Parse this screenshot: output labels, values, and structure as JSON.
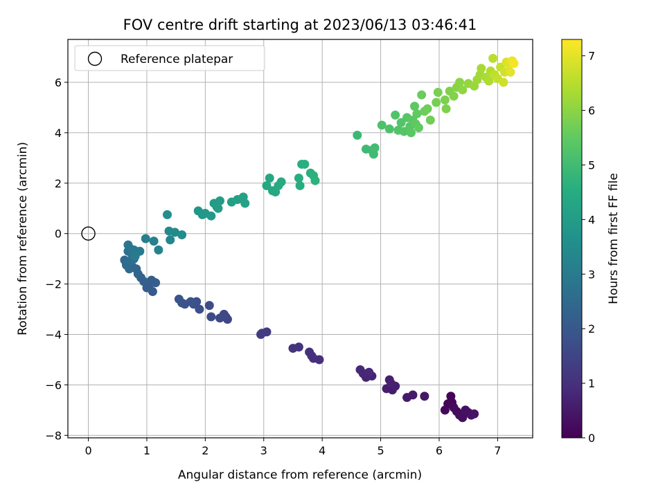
{
  "chart_data": {
    "type": "scatter",
    "title": "FOV centre drift starting at 2023/06/13 03:46:41",
    "xlabel": "Angular distance from reference (arcmin)",
    "ylabel": "Rotation from reference (arcmin)",
    "colorbar_label": "Hours from first FF file",
    "colormap": "viridis",
    "xlim": [
      -0.35,
      7.6
    ],
    "ylim": [
      -8.1,
      7.7
    ],
    "clim": [
      0,
      7.3
    ],
    "xticks": [
      "0",
      "1",
      "2",
      "3",
      "4",
      "5",
      "6",
      "7"
    ],
    "yticks": [
      "−8",
      "−6",
      "−4",
      "−2",
      "0",
      "2",
      "4",
      "6"
    ],
    "colorbar_ticks": [
      "0",
      "1",
      "2",
      "3",
      "4",
      "5",
      "6",
      "7"
    ],
    "grid": true,
    "legend": {
      "label": "Reference platepar",
      "placement": "top-left"
    },
    "reference_point": {
      "x": 0,
      "y": 0
    },
    "points": [
      {
        "x": 6.2,
        "y": -6.45,
        "c": 0.05
      },
      {
        "x": 6.15,
        "y": -6.75,
        "c": 0.1
      },
      {
        "x": 6.22,
        "y": -6.7,
        "c": 0.12
      },
      {
        "x": 6.1,
        "y": -7.0,
        "c": 0.15
      },
      {
        "x": 6.3,
        "y": -7.05,
        "c": 0.2
      },
      {
        "x": 6.35,
        "y": -7.2,
        "c": 0.25
      },
      {
        "x": 6.4,
        "y": -7.3,
        "c": 0.28
      },
      {
        "x": 6.45,
        "y": -7.0,
        "c": 0.32
      },
      {
        "x": 6.5,
        "y": -7.1,
        "c": 0.35
      },
      {
        "x": 6.55,
        "y": -7.2,
        "c": 0.38
      },
      {
        "x": 6.6,
        "y": -7.15,
        "c": 0.4
      },
      {
        "x": 6.25,
        "y": -6.9,
        "c": 0.18
      },
      {
        "x": 5.75,
        "y": -6.45,
        "c": 0.45
      },
      {
        "x": 5.55,
        "y": -6.4,
        "c": 0.5
      },
      {
        "x": 5.45,
        "y": -6.5,
        "c": 0.52
      },
      {
        "x": 5.2,
        "y": -6.2,
        "c": 0.55
      },
      {
        "x": 5.1,
        "y": -6.15,
        "c": 0.6
      },
      {
        "x": 5.25,
        "y": -6.05,
        "c": 0.62
      },
      {
        "x": 5.15,
        "y": -5.8,
        "c": 0.65
      },
      {
        "x": 5.18,
        "y": -5.95,
        "c": 0.68
      },
      {
        "x": 4.85,
        "y": -5.65,
        "c": 0.72
      },
      {
        "x": 4.75,
        "y": -5.7,
        "c": 0.75
      },
      {
        "x": 4.7,
        "y": -5.55,
        "c": 0.78
      },
      {
        "x": 4.65,
        "y": -5.4,
        "c": 0.8
      },
      {
        "x": 4.8,
        "y": -5.5,
        "c": 0.82
      },
      {
        "x": 3.95,
        "y": -5.0,
        "c": 0.95
      },
      {
        "x": 3.85,
        "y": -4.95,
        "c": 0.98
      },
      {
        "x": 3.82,
        "y": -4.85,
        "c": 1.0
      },
      {
        "x": 3.78,
        "y": -4.7,
        "c": 1.02
      },
      {
        "x": 3.6,
        "y": -4.5,
        "c": 1.05
      },
      {
        "x": 3.5,
        "y": -4.55,
        "c": 1.08
      },
      {
        "x": 3.05,
        "y": -3.9,
        "c": 1.25
      },
      {
        "x": 2.95,
        "y": -4.0,
        "c": 1.28
      },
      {
        "x": 2.97,
        "y": -3.95,
        "c": 1.3
      },
      {
        "x": 2.38,
        "y": -3.4,
        "c": 1.55
      },
      {
        "x": 2.35,
        "y": -3.3,
        "c": 1.58
      },
      {
        "x": 2.32,
        "y": -3.2,
        "c": 1.6
      },
      {
        "x": 2.25,
        "y": -3.35,
        "c": 1.62
      },
      {
        "x": 2.1,
        "y": -3.3,
        "c": 1.65
      },
      {
        "x": 2.07,
        "y": -2.85,
        "c": 1.7
      },
      {
        "x": 1.9,
        "y": -3.0,
        "c": 1.75
      },
      {
        "x": 1.85,
        "y": -2.7,
        "c": 1.78
      },
      {
        "x": 1.8,
        "y": -2.8,
        "c": 1.8
      },
      {
        "x": 1.75,
        "y": -2.7,
        "c": 1.82
      },
      {
        "x": 1.65,
        "y": -2.8,
        "c": 1.85
      },
      {
        "x": 1.6,
        "y": -2.75,
        "c": 1.88
      },
      {
        "x": 1.55,
        "y": -2.6,
        "c": 1.9
      },
      {
        "x": 1.1,
        "y": -2.3,
        "c": 2.05
      },
      {
        "x": 1.05,
        "y": -2.0,
        "c": 2.1
      },
      {
        "x": 1.0,
        "y": -2.15,
        "c": 2.12
      },
      {
        "x": 1.15,
        "y": -1.95,
        "c": 2.15
      },
      {
        "x": 1.08,
        "y": -1.85,
        "c": 2.18
      },
      {
        "x": 0.95,
        "y": -1.9,
        "c": 2.2
      },
      {
        "x": 0.9,
        "y": -1.75,
        "c": 2.25
      },
      {
        "x": 0.85,
        "y": -1.6,
        "c": 2.3
      },
      {
        "x": 0.82,
        "y": -1.4,
        "c": 2.35
      },
      {
        "x": 0.75,
        "y": -1.3,
        "c": 2.4
      },
      {
        "x": 0.7,
        "y": -1.4,
        "c": 2.45
      },
      {
        "x": 0.65,
        "y": -1.25,
        "c": 2.5
      },
      {
        "x": 0.62,
        "y": -1.05,
        "c": 2.55
      },
      {
        "x": 0.72,
        "y": -1.1,
        "c": 2.6
      },
      {
        "x": 0.78,
        "y": -1.0,
        "c": 2.65
      },
      {
        "x": 0.75,
        "y": -0.85,
        "c": 2.7
      },
      {
        "x": 0.68,
        "y": -0.7,
        "c": 2.75
      },
      {
        "x": 0.72,
        "y": -0.6,
        "c": 2.8
      },
      {
        "x": 0.68,
        "y": -0.45,
        "c": 2.85
      },
      {
        "x": 0.78,
        "y": -0.65,
        "c": 2.9
      },
      {
        "x": 0.88,
        "y": -0.7,
        "c": 2.95
      },
      {
        "x": 0.8,
        "y": -0.9,
        "c": 3.0
      },
      {
        "x": 0.98,
        "y": -0.2,
        "c": 3.1
      },
      {
        "x": 1.12,
        "y": -0.3,
        "c": 3.15
      },
      {
        "x": 1.2,
        "y": -0.65,
        "c": 3.2
      },
      {
        "x": 1.4,
        "y": -0.25,
        "c": 3.3
      },
      {
        "x": 1.38,
        "y": 0.1,
        "c": 3.4
      },
      {
        "x": 1.48,
        "y": 0.05,
        "c": 3.45
      },
      {
        "x": 1.6,
        "y": -0.05,
        "c": 3.5
      },
      {
        "x": 1.35,
        "y": 0.75,
        "c": 3.6
      },
      {
        "x": 1.88,
        "y": 0.9,
        "c": 3.8
      },
      {
        "x": 1.95,
        "y": 0.75,
        "c": 3.85
      },
      {
        "x": 2.0,
        "y": 0.8,
        "c": 3.88
      },
      {
        "x": 2.1,
        "y": 0.7,
        "c": 3.9
      },
      {
        "x": 2.15,
        "y": 1.2,
        "c": 3.95
      },
      {
        "x": 2.2,
        "y": 1.05,
        "c": 3.98
      },
      {
        "x": 2.25,
        "y": 1.3,
        "c": 4.0
      },
      {
        "x": 2.22,
        "y": 1.0,
        "c": 4.02
      },
      {
        "x": 2.45,
        "y": 1.25,
        "c": 4.1
      },
      {
        "x": 2.55,
        "y": 1.35,
        "c": 4.12
      },
      {
        "x": 2.65,
        "y": 1.45,
        "c": 4.15
      },
      {
        "x": 2.68,
        "y": 1.2,
        "c": 4.18
      },
      {
        "x": 3.05,
        "y": 1.9,
        "c": 4.3
      },
      {
        "x": 3.1,
        "y": 2.2,
        "c": 4.32
      },
      {
        "x": 3.15,
        "y": 1.7,
        "c": 4.35
      },
      {
        "x": 3.2,
        "y": 1.65,
        "c": 4.38
      },
      {
        "x": 3.25,
        "y": 1.9,
        "c": 4.4
      },
      {
        "x": 3.3,
        "y": 2.05,
        "c": 4.42
      },
      {
        "x": 3.6,
        "y": 2.2,
        "c": 4.5
      },
      {
        "x": 3.62,
        "y": 1.9,
        "c": 4.52
      },
      {
        "x": 3.65,
        "y": 2.75,
        "c": 4.55
      },
      {
        "x": 3.7,
        "y": 2.75,
        "c": 4.58
      },
      {
        "x": 3.8,
        "y": 2.4,
        "c": 4.6
      },
      {
        "x": 3.85,
        "y": 2.3,
        "c": 4.62
      },
      {
        "x": 3.88,
        "y": 2.1,
        "c": 4.65
      },
      {
        "x": 4.6,
        "y": 3.9,
        "c": 4.9
      },
      {
        "x": 4.75,
        "y": 3.35,
        "c": 4.95
      },
      {
        "x": 4.85,
        "y": 3.3,
        "c": 4.98
      },
      {
        "x": 4.88,
        "y": 3.15,
        "c": 5.0
      },
      {
        "x": 4.9,
        "y": 3.4,
        "c": 5.02
      },
      {
        "x": 5.02,
        "y": 4.3,
        "c": 5.2
      },
      {
        "x": 5.15,
        "y": 4.15,
        "c": 5.22
      },
      {
        "x": 5.25,
        "y": 4.7,
        "c": 5.25
      },
      {
        "x": 5.3,
        "y": 4.1,
        "c": 5.28
      },
      {
        "x": 5.35,
        "y": 4.4,
        "c": 5.3
      },
      {
        "x": 5.4,
        "y": 4.05,
        "c": 5.32
      },
      {
        "x": 5.45,
        "y": 4.6,
        "c": 5.35
      },
      {
        "x": 5.5,
        "y": 4.25,
        "c": 5.38
      },
      {
        "x": 5.52,
        "y": 4.0,
        "c": 5.4
      },
      {
        "x": 5.55,
        "y": 4.5,
        "c": 5.42
      },
      {
        "x": 5.58,
        "y": 5.05,
        "c": 5.45
      },
      {
        "x": 5.6,
        "y": 4.35,
        "c": 5.48
      },
      {
        "x": 5.62,
        "y": 4.75,
        "c": 5.5
      },
      {
        "x": 5.65,
        "y": 4.2,
        "c": 5.52
      },
      {
        "x": 5.7,
        "y": 5.5,
        "c": 5.6
      },
      {
        "x": 5.75,
        "y": 4.85,
        "c": 5.65
      },
      {
        "x": 5.8,
        "y": 4.95,
        "c": 5.68
      },
      {
        "x": 5.85,
        "y": 4.5,
        "c": 5.7
      },
      {
        "x": 5.95,
        "y": 5.2,
        "c": 5.75
      },
      {
        "x": 5.98,
        "y": 5.6,
        "c": 5.78
      },
      {
        "x": 6.1,
        "y": 5.3,
        "c": 5.82
      },
      {
        "x": 6.12,
        "y": 4.95,
        "c": 5.85
      },
      {
        "x": 6.18,
        "y": 5.65,
        "c": 5.88
      },
      {
        "x": 6.25,
        "y": 5.45,
        "c": 5.9
      },
      {
        "x": 6.3,
        "y": 5.8,
        "c": 5.95
      },
      {
        "x": 6.35,
        "y": 6.0,
        "c": 6.0
      },
      {
        "x": 6.4,
        "y": 5.7,
        "c": 6.05
      },
      {
        "x": 6.5,
        "y": 5.95,
        "c": 6.1
      },
      {
        "x": 6.6,
        "y": 5.85,
        "c": 6.15
      },
      {
        "x": 6.65,
        "y": 6.1,
        "c": 6.2
      },
      {
        "x": 6.7,
        "y": 6.3,
        "c": 6.25
      },
      {
        "x": 6.72,
        "y": 6.55,
        "c": 6.3
      },
      {
        "x": 6.8,
        "y": 6.2,
        "c": 6.35
      },
      {
        "x": 6.85,
        "y": 6.05,
        "c": 6.4
      },
      {
        "x": 6.88,
        "y": 6.45,
        "c": 6.45
      },
      {
        "x": 6.92,
        "y": 6.95,
        "c": 6.55
      },
      {
        "x": 6.95,
        "y": 6.3,
        "c": 6.6
      },
      {
        "x": 7.0,
        "y": 6.15,
        "c": 6.65
      },
      {
        "x": 7.05,
        "y": 6.6,
        "c": 6.7
      },
      {
        "x": 7.1,
        "y": 6.0,
        "c": 6.75
      },
      {
        "x": 7.12,
        "y": 6.4,
        "c": 6.8
      },
      {
        "x": 7.15,
        "y": 6.8,
        "c": 6.9
      },
      {
        "x": 7.2,
        "y": 6.7,
        "c": 6.95
      },
      {
        "x": 7.22,
        "y": 6.4,
        "c": 7.0
      },
      {
        "x": 7.25,
        "y": 6.85,
        "c": 7.1
      },
      {
        "x": 7.28,
        "y": 6.75,
        "c": 7.2
      }
    ]
  }
}
